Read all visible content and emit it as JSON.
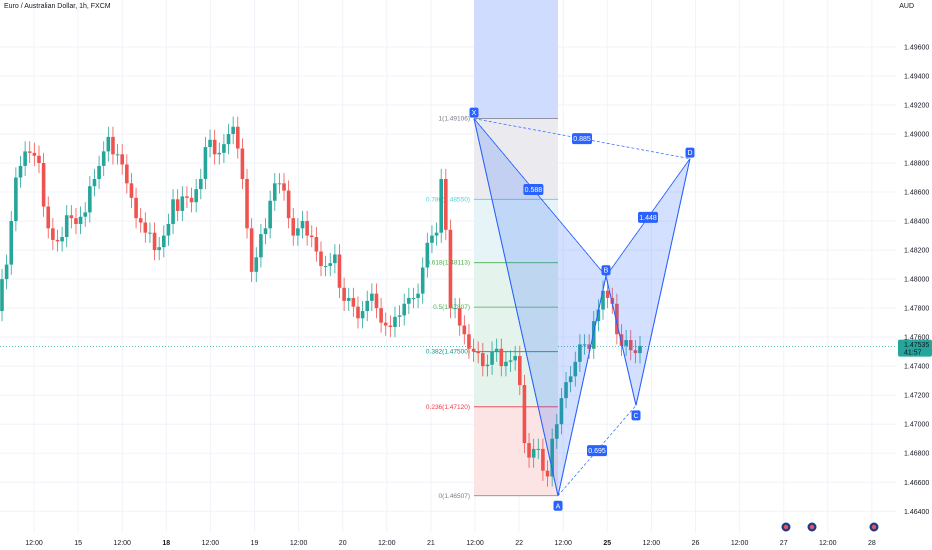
{
  "header": {
    "symbol": "Euro / Australian Dollar, 1h, FXCM",
    "unit": "AUD"
  },
  "colors": {
    "up": "#26a69a",
    "down": "#ef5350",
    "pattern": "#2962ff",
    "grid": "#f0f3fa"
  },
  "chart_data": {
    "type": "candlestick",
    "ylim": [
      1.4634,
      1.4982
    ],
    "y_ticks": [
      "1.49600",
      "1.49400",
      "1.49200",
      "1.49000",
      "1.48800",
      "1.48600",
      "1.48400",
      "1.48200",
      "1.48000",
      "1.47800",
      "1.47600",
      "1.47400",
      "1.47200",
      "1.47000",
      "1.46800",
      "1.46600",
      "1.46400"
    ],
    "x_ticks": [
      "12:00",
      "15",
      "12:00",
      "18",
      "12:00",
      "19",
      "12:00",
      "20",
      "12:00",
      "21",
      "12:00",
      "22",
      "12:00",
      "25",
      "12:00",
      "26",
      "12:00",
      "27",
      "12:00",
      "28"
    ],
    "bold_x_ticks": [
      "18",
      "25"
    ],
    "current_price": {
      "price": "1.47535",
      "countdown": "41:57"
    },
    "fib_levels": [
      {
        "label": "1(1.49106)",
        "value": 1.49106,
        "color": "#787b86"
      },
      {
        "label": "0.786(1.48550)",
        "value": 1.4855,
        "color": "#4dd0e1"
      },
      {
        "label": "0.618(1.48113)",
        "value": 1.48113,
        "color": "#4caf50"
      },
      {
        "label": "0.5(1.47807)",
        "value": 1.47807,
        "color": "#4caf50"
      },
      {
        "label": "0.382(1.47500)",
        "value": 1.475,
        "color": "#009688"
      },
      {
        "label": "0.236(1.47120)",
        "value": 1.4712,
        "color": "#f23645"
      },
      {
        "label": "0(1.46507)",
        "value": 1.46507,
        "color": "#787b86"
      }
    ],
    "xabcd": {
      "points": [
        {
          "label": "X",
          "value": 1.49106
        },
        {
          "label": "A",
          "value": 1.46507
        },
        {
          "label": "B",
          "value": 1.4802
        },
        {
          "label": "C",
          "value": 1.4713
        },
        {
          "label": "D",
          "value": 1.4883
        }
      ],
      "ratios": [
        {
          "label": "0.588",
          "between": "XA-B"
        },
        {
          "label": "0.885",
          "between": "XD"
        },
        {
          "label": "1.448",
          "between": "BD"
        },
        {
          "label": "0.695",
          "between": "AC"
        }
      ]
    },
    "candles": {
      "open": [
        1.4778,
        1.48,
        1.481,
        1.484,
        1.487,
        1.4878,
        1.4888,
        1.4887,
        1.4885,
        1.488,
        1.485,
        1.4835,
        1.4827,
        1.4826,
        1.4829,
        1.4844,
        1.4842,
        1.4838,
        1.4843,
        1.4846,
        1.4864,
        1.4869,
        1.4878,
        1.4888,
        1.4898,
        1.4886,
        1.4886,
        1.4879,
        1.4866,
        1.4856,
        1.4842,
        1.4839,
        1.4832,
        1.4832,
        1.482,
        1.4822,
        1.483,
        1.4838,
        1.4855,
        1.4847,
        1.4857,
        1.4856,
        1.4853,
        1.4862,
        1.4869,
        1.4891,
        1.4896,
        1.4886,
        1.4887,
        1.4893,
        1.49,
        1.4905,
        1.489,
        1.4869,
        1.4835,
        1.4805,
        1.4815,
        1.4831,
        1.4835,
        1.4854,
        1.4866,
        1.4866,
        1.4861,
        1.4842,
        1.483,
        1.4835,
        1.484,
        1.483,
        1.4829,
        1.4819,
        1.4809,
        1.4809,
        1.4811,
        1.4817,
        1.4794,
        1.4785,
        1.4787,
        1.4781,
        1.4773,
        1.4778,
        1.4785,
        1.479,
        1.478,
        1.477,
        1.4768,
        1.4767,
        1.4774,
        1.4775,
        1.4783,
        1.4787,
        1.4787,
        1.479,
        1.4808,
        1.4825,
        1.483,
        1.4832,
        1.4869,
        1.4834,
        1.478,
        1.478,
        1.4768,
        1.4762,
        1.4752,
        1.475,
        1.4749,
        1.474,
        1.4741,
        1.475,
        1.4752,
        1.474,
        1.4743,
        1.4744,
        1.4747,
        1.4727,
        1.4687,
        1.4677,
        1.4683,
        1.4683,
        1.4668,
        1.4664,
        1.469,
        1.47,
        1.4718,
        1.4729,
        1.4733,
        1.4743,
        1.4755,
        1.4755,
        1.4752,
        1.4771,
        1.4779,
        1.4792,
        1.4787,
        1.4783,
        1.4762,
        1.4754,
        1.4758,
        1.4751,
        1.4749
      ],
      "close": [
        1.48,
        1.481,
        1.484,
        1.487,
        1.4878,
        1.4888,
        1.4887,
        1.4885,
        1.488,
        1.485,
        1.4835,
        1.4827,
        1.4826,
        1.4829,
        1.4844,
        1.4842,
        1.4838,
        1.4843,
        1.4846,
        1.4864,
        1.4869,
        1.4878,
        1.4888,
        1.4898,
        1.4886,
        1.4886,
        1.4879,
        1.4866,
        1.4856,
        1.4842,
        1.4839,
        1.4832,
        1.4832,
        1.482,
        1.4822,
        1.483,
        1.4838,
        1.4855,
        1.4847,
        1.4857,
        1.4856,
        1.4853,
        1.4862,
        1.4869,
        1.4891,
        1.4896,
        1.4886,
        1.4887,
        1.4893,
        1.49,
        1.4905,
        1.489,
        1.4869,
        1.4835,
        1.4805,
        1.4815,
        1.4831,
        1.4835,
        1.4854,
        1.4866,
        1.4866,
        1.4861,
        1.4842,
        1.483,
        1.4835,
        1.484,
        1.483,
        1.4829,
        1.4819,
        1.4809,
        1.4809,
        1.4811,
        1.4817,
        1.4794,
        1.4785,
        1.4787,
        1.4781,
        1.4773,
        1.4778,
        1.4785,
        1.479,
        1.478,
        1.477,
        1.4768,
        1.4767,
        1.4774,
        1.4775,
        1.4783,
        1.4787,
        1.4787,
        1.479,
        1.4808,
        1.4825,
        1.483,
        1.4832,
        1.4869,
        1.4834,
        1.478,
        1.478,
        1.4768,
        1.4762,
        1.4752,
        1.475,
        1.4749,
        1.474,
        1.4741,
        1.475,
        1.4752,
        1.474,
        1.4743,
        1.4744,
        1.4747,
        1.4727,
        1.4687,
        1.4677,
        1.4683,
        1.4683,
        1.4668,
        1.4664,
        1.469,
        1.47,
        1.4718,
        1.4729,
        1.4733,
        1.4743,
        1.4755,
        1.4755,
        1.4752,
        1.4771,
        1.4779,
        1.4792,
        1.4787,
        1.4783,
        1.4762,
        1.4754,
        1.4758,
        1.4751,
        1.4749,
        1.4754
      ]
    }
  }
}
